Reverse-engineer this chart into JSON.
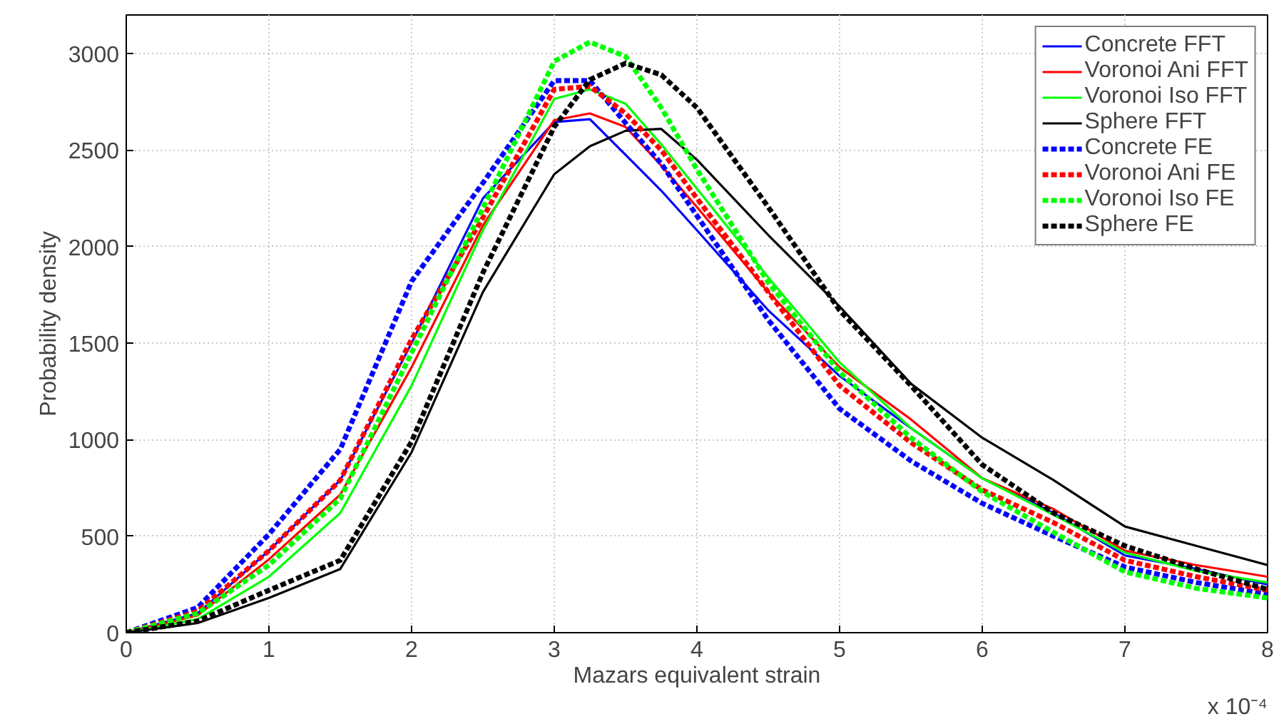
{
  "chart_data": {
    "type": "line",
    "xlabel": "Mazars equivalent strain",
    "ylabel": "Probability density",
    "annotations": [
      "x 10⁻⁴"
    ],
    "x": [
      0,
      0.5,
      1,
      1.5,
      2,
      2.5,
      3,
      3.25,
      3.5,
      3.75,
      4,
      4.5,
      5,
      5.5,
      6,
      6.5,
      7,
      7.5,
      8
    ],
    "xlim": [
      0,
      8
    ],
    "xticks": [
      0,
      1,
      2,
      3,
      4,
      5,
      6,
      7,
      8
    ],
    "ylim": [
      0,
      3200
    ],
    "yticks": [
      0,
      500,
      1000,
      1500,
      2000,
      2500,
      3000
    ],
    "grid": true,
    "legend": "top right",
    "series": [
      {
        "name": "Concrete FFT",
        "color": "#0000ff",
        "line_style": "solid",
        "values": [
          0,
          100,
          425,
          790,
          1500,
          2250,
          2645,
          2660,
          2475,
          2290,
          2085,
          1670,
          1330,
          1060,
          800,
          620,
          400,
          330,
          250
        ]
      },
      {
        "name": "Voronoi Ani FFT",
        "color": "#ff0000",
        "line_style": "solid",
        "values": [
          0,
          90,
          380,
          715,
          1375,
          2110,
          2655,
          2690,
          2620,
          2420,
          2205,
          1765,
          1375,
          1105,
          800,
          640,
          425,
          350,
          290
        ]
      },
      {
        "name": "Voronoi Iso FFT",
        "color": "#00ff00",
        "line_style": "solid",
        "values": [
          0,
          70,
          290,
          620,
          1280,
          2085,
          2765,
          2815,
          2740,
          2530,
          2300,
          1840,
          1400,
          1060,
          800,
          610,
          415,
          320,
          260
        ]
      },
      {
        "name": "Sphere FFT",
        "color": "#000000",
        "line_style": "solid",
        "values": [
          0,
          50,
          180,
          330,
          935,
          1765,
          2375,
          2520,
          2600,
          2610,
          2450,
          2060,
          1690,
          1290,
          1010,
          790,
          550,
          450,
          350
        ]
      },
      {
        "name": "Concrete FE",
        "color": "#0000ff",
        "line_style": "dashed",
        "values": [
          0,
          130,
          510,
          950,
          1820,
          2330,
          2860,
          2860,
          2640,
          2430,
          2160,
          1620,
          1160,
          890,
          670,
          500,
          340,
          260,
          200
        ]
      },
      {
        "name": "Voronoi Ani FE",
        "color": "#ff0000",
        "line_style": "dashed",
        "values": [
          0,
          110,
          425,
          790,
          1520,
          2150,
          2815,
          2830,
          2690,
          2500,
          2250,
          1765,
          1280,
          985,
          740,
          570,
          375,
          290,
          220
        ]
      },
      {
        "name": "Voronoi Iso FE",
        "color": "#00ff00",
        "line_style": "dashed",
        "values": [
          0,
          100,
          350,
          695,
          1450,
          2200,
          2960,
          3060,
          2985,
          2720,
          2400,
          1815,
          1350,
          1010,
          730,
          520,
          315,
          230,
          180
        ]
      },
      {
        "name": "Sphere FE",
        "color": "#000000",
        "line_style": "dashed",
        "values": [
          0,
          60,
          220,
          375,
          990,
          1865,
          2620,
          2865,
          2950,
          2890,
          2720,
          2205,
          1670,
          1280,
          870,
          620,
          450,
          330,
          225
        ]
      }
    ]
  }
}
